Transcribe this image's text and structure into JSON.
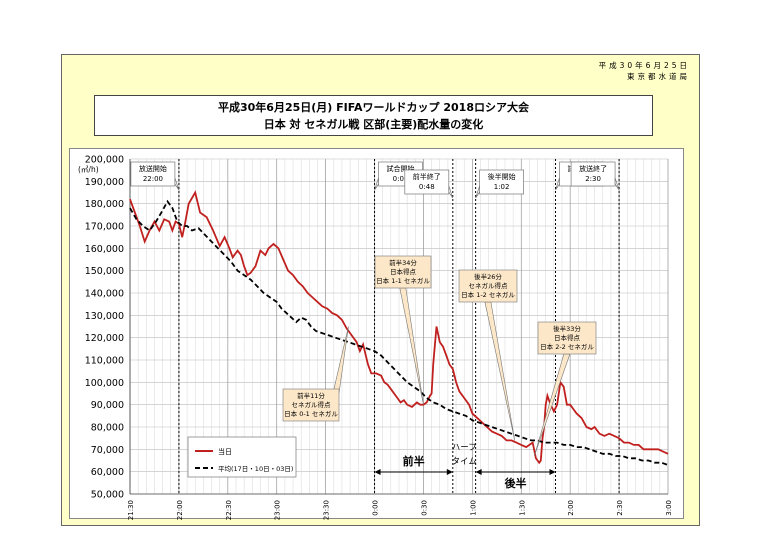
{
  "issuer": {
    "date": "平成30年6月25日",
    "org": "東京都水道局"
  },
  "titles": [
    "平成30年6月25日(月) FIFAワールドカップ 2018ロシア大会",
    "日本 対 セネガル戦 区部(主要)配水量の変化"
  ],
  "chart_data": {
    "type": "line",
    "ylabel": "(㎥/h)",
    "ylim": [
      50000,
      200000
    ],
    "yticks": [
      "200,000",
      "190,000",
      "180,000",
      "170,000",
      "160,000",
      "150,000",
      "140,000",
      "130,000",
      "120,000",
      "110,000",
      "100,000",
      "90,000",
      "80,000",
      "70,000",
      "60,000",
      "50,000"
    ],
    "xlim": [
      1290,
      1800
    ],
    "xticks": [
      {
        "t": 1290,
        "label": "21:30"
      },
      {
        "t": 1320,
        "label": "22:00"
      },
      {
        "t": 1350,
        "label": "22:30"
      },
      {
        "t": 1380,
        "label": "23:00"
      },
      {
        "t": 1410,
        "label": "23:30"
      },
      {
        "t": 1440,
        "label": "0:00"
      },
      {
        "t": 1470,
        "label": "0:30"
      },
      {
        "t": 1500,
        "label": "1:00"
      },
      {
        "t": 1530,
        "label": "1:30"
      },
      {
        "t": 1560,
        "label": "2:00"
      },
      {
        "t": 1590,
        "label": "2:30"
      },
      {
        "t": 1620,
        "label": "3:00"
      }
    ],
    "series": [
      {
        "name": "当日",
        "color": "#c0201e",
        "dash": "",
        "points": [
          [
            1290,
            182000
          ],
          [
            1293,
            176000
          ],
          [
            1296,
            170000
          ],
          [
            1299,
            163000
          ],
          [
            1302,
            168000
          ],
          [
            1305,
            172000
          ],
          [
            1308,
            168000
          ],
          [
            1311,
            173000
          ],
          [
            1314,
            172000
          ],
          [
            1316,
            168000
          ],
          [
            1318,
            172000
          ],
          [
            1320,
            171000
          ],
          [
            1322,
            165000
          ],
          [
            1324,
            172000
          ],
          [
            1326,
            180000
          ],
          [
            1330,
            185000
          ],
          [
            1333,
            176000
          ],
          [
            1337,
            174000
          ],
          [
            1341,
            168000
          ],
          [
            1345,
            161000
          ],
          [
            1348,
            165000
          ],
          [
            1351,
            160000
          ],
          [
            1353,
            156000
          ],
          [
            1356,
            159000
          ],
          [
            1358,
            157000
          ],
          [
            1360,
            152000
          ],
          [
            1362,
            148000
          ],
          [
            1364,
            149000
          ],
          [
            1367,
            152000
          ],
          [
            1370,
            159000
          ],
          [
            1373,
            157000
          ],
          [
            1375,
            160000
          ],
          [
            1378,
            162000
          ],
          [
            1381,
            160000
          ],
          [
            1384,
            155000
          ],
          [
            1387,
            150000
          ],
          [
            1390,
            148000
          ],
          [
            1393,
            145000
          ],
          [
            1396,
            143000
          ],
          [
            1399,
            140000
          ],
          [
            1402,
            138000
          ],
          [
            1405,
            136000
          ],
          [
            1408,
            134000
          ],
          [
            1411,
            133000
          ],
          [
            1414,
            131000
          ],
          [
            1417,
            130000
          ],
          [
            1420,
            128000
          ],
          [
            1423,
            124000
          ],
          [
            1426,
            121000
          ],
          [
            1429,
            118000
          ],
          [
            1431,
            114000
          ],
          [
            1433,
            117000
          ],
          [
            1436,
            108000
          ],
          [
            1438,
            104000
          ],
          [
            1441,
            104000
          ],
          [
            1444,
            103000
          ],
          [
            1446,
            100000
          ],
          [
            1448,
            99000
          ],
          [
            1451,
            96000
          ],
          [
            1454,
            93000
          ],
          [
            1456,
            91000
          ],
          [
            1458,
            92000
          ],
          [
            1460,
            90000
          ],
          [
            1463,
            89000
          ],
          [
            1466,
            91000
          ],
          [
            1468,
            90000
          ],
          [
            1470,
            90000
          ],
          [
            1472,
            91000
          ],
          [
            1474,
            94000
          ],
          [
            1475,
            95000
          ],
          [
            1476,
            108000
          ],
          [
            1478,
            125000
          ],
          [
            1480,
            118000
          ],
          [
            1482,
            116000
          ],
          [
            1484,
            112000
          ],
          [
            1486,
            108000
          ],
          [
            1488,
            106000
          ],
          [
            1490,
            100000
          ],
          [
            1492,
            96000
          ],
          [
            1495,
            93000
          ],
          [
            1498,
            90000
          ],
          [
            1500,
            86000
          ],
          [
            1503,
            84000
          ],
          [
            1506,
            82000
          ],
          [
            1509,
            80000
          ],
          [
            1512,
            78000
          ],
          [
            1515,
            77000
          ],
          [
            1518,
            76000
          ],
          [
            1521,
            74000
          ],
          [
            1524,
            74000
          ],
          [
            1527,
            73000
          ],
          [
            1530,
            72000
          ],
          [
            1533,
            71000
          ],
          [
            1535,
            72000
          ],
          [
            1537,
            73000
          ],
          [
            1539,
            66000
          ],
          [
            1541,
            64000
          ],
          [
            1542,
            65000
          ],
          [
            1543,
            75000
          ],
          [
            1544,
            80000
          ],
          [
            1545,
            90000
          ],
          [
            1546,
            94000
          ],
          [
            1548,
            90000
          ],
          [
            1550,
            87000
          ],
          [
            1552,
            90000
          ],
          [
            1554,
            100000
          ],
          [
            1556,
            98000
          ],
          [
            1558,
            90000
          ],
          [
            1560,
            90000
          ],
          [
            1562,
            88000
          ],
          [
            1564,
            86000
          ],
          [
            1567,
            84000
          ],
          [
            1570,
            80000
          ],
          [
            1573,
            79000
          ],
          [
            1575,
            80000
          ],
          [
            1578,
            77000
          ],
          [
            1581,
            76000
          ],
          [
            1584,
            77000
          ],
          [
            1587,
            76000
          ],
          [
            1590,
            75000
          ],
          [
            1593,
            73000
          ],
          [
            1596,
            73000
          ],
          [
            1599,
            72000
          ],
          [
            1602,
            72000
          ],
          [
            1605,
            70000
          ],
          [
            1608,
            70000
          ],
          [
            1611,
            70000
          ],
          [
            1614,
            70000
          ],
          [
            1617,
            69000
          ],
          [
            1620,
            68000
          ]
        ]
      },
      {
        "name": "平均(17日・10日・03日)",
        "color": "#000000",
        "dash": "5,3",
        "points": [
          [
            1290,
            178000
          ],
          [
            1294,
            173000
          ],
          [
            1298,
            170000
          ],
          [
            1302,
            168000
          ],
          [
            1306,
            172000
          ],
          [
            1310,
            177000
          ],
          [
            1313,
            181000
          ],
          [
            1316,
            178000
          ],
          [
            1319,
            172000
          ],
          [
            1322,
            170000
          ],
          [
            1325,
            170000
          ],
          [
            1328,
            168000
          ],
          [
            1332,
            169000
          ],
          [
            1336,
            166000
          ],
          [
            1340,
            163000
          ],
          [
            1344,
            160000
          ],
          [
            1348,
            157000
          ],
          [
            1352,
            154000
          ],
          [
            1356,
            150000
          ],
          [
            1360,
            148000
          ],
          [
            1364,
            146000
          ],
          [
            1368,
            143000
          ],
          [
            1372,
            140000
          ],
          [
            1376,
            138000
          ],
          [
            1380,
            136000
          ],
          [
            1383,
            133000
          ],
          [
            1386,
            131000
          ],
          [
            1389,
            129000
          ],
          [
            1392,
            127000
          ],
          [
            1395,
            129000
          ],
          [
            1398,
            128000
          ],
          [
            1401,
            125000
          ],
          [
            1404,
            123000
          ],
          [
            1408,
            122000
          ],
          [
            1412,
            121000
          ],
          [
            1416,
            120000
          ],
          [
            1420,
            119000
          ],
          [
            1424,
            118000
          ],
          [
            1428,
            117000
          ],
          [
            1432,
            116000
          ],
          [
            1436,
            115000
          ],
          [
            1440,
            114000
          ],
          [
            1444,
            112000
          ],
          [
            1448,
            109000
          ],
          [
            1452,
            106000
          ],
          [
            1456,
            103000
          ],
          [
            1460,
            100000
          ],
          [
            1464,
            98000
          ],
          [
            1468,
            96000
          ],
          [
            1472,
            93000
          ],
          [
            1476,
            91000
          ],
          [
            1480,
            90000
          ],
          [
            1484,
            88000
          ],
          [
            1488,
            87000
          ],
          [
            1492,
            86000
          ],
          [
            1496,
            85000
          ],
          [
            1500,
            83000
          ],
          [
            1504,
            82000
          ],
          [
            1508,
            81000
          ],
          [
            1512,
            80000
          ],
          [
            1516,
            79000
          ],
          [
            1520,
            78000
          ],
          [
            1524,
            77000
          ],
          [
            1528,
            76000
          ],
          [
            1532,
            75000
          ],
          [
            1536,
            74000
          ],
          [
            1540,
            74000
          ],
          [
            1544,
            73000
          ],
          [
            1548,
            73000
          ],
          [
            1552,
            73000
          ],
          [
            1556,
            72000
          ],
          [
            1560,
            72000
          ],
          [
            1564,
            71000
          ],
          [
            1568,
            71000
          ],
          [
            1572,
            70000
          ],
          [
            1576,
            69000
          ],
          [
            1580,
            68000
          ],
          [
            1584,
            68000
          ],
          [
            1588,
            67000
          ],
          [
            1592,
            67000
          ],
          [
            1596,
            66000
          ],
          [
            1600,
            66000
          ],
          [
            1604,
            65000
          ],
          [
            1608,
            65000
          ],
          [
            1612,
            64000
          ],
          [
            1616,
            64000
          ],
          [
            1620,
            63000
          ]
        ]
      }
    ],
    "events": [
      {
        "t": 1320,
        "label": [
          "放送開始",
          "22:00"
        ],
        "tail": "right"
      },
      {
        "t": 1440,
        "label": [
          "試合開始",
          "0:00"
        ],
        "tail": "left"
      },
      {
        "t": 1488,
        "label": [
          "前半終了",
          "0:48"
        ],
        "tail": "right"
      },
      {
        "t": 1502,
        "label": [
          "後半開始",
          "1:02"
        ],
        "tail": "left"
      },
      {
        "t": 1551,
        "label": [
          "試合終了",
          "1:51"
        ],
        "tail": "left"
      },
      {
        "t": 1590,
        "label": [
          "放送終了",
          "2:30"
        ],
        "tail": "right"
      }
    ],
    "goals": [
      {
        "label": [
          "前半11分",
          "セネガル得点",
          "日本 0-1 セネガル"
        ]
      },
      {
        "label": [
          "前半34分",
          "日本得点",
          "日本 1-1 セネガル"
        ]
      },
      {
        "label": [
          "後半26分",
          "セネガル得点",
          "日本 1-2 セネガル"
        ]
      },
      {
        "label": [
          "後半33分",
          "日本得点",
          "日本 2-2 セネガル"
        ]
      }
    ],
    "halves": {
      "first": "前半",
      "half": [
        "ハーフ",
        "タイム"
      ],
      "second": "後半"
    }
  }
}
